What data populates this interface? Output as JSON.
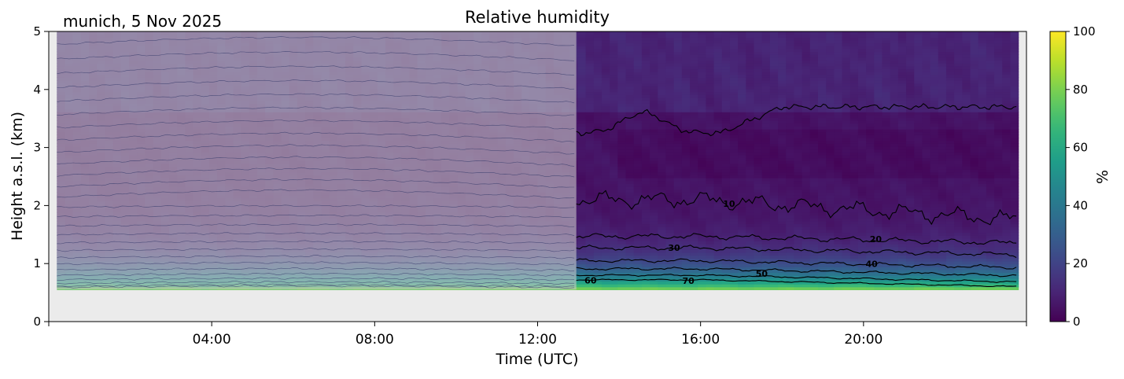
{
  "chart_data": {
    "type": "heatmap",
    "title": "Relative humidity",
    "subtitle": "munich, 5 Nov 2025",
    "xlabel": "Time (UTC)",
    "ylabel": "Height a.s.l. (km)",
    "xlim": [
      0,
      24
    ],
    "ylim": [
      0,
      5
    ],
    "x_ticks": [
      4,
      8,
      12,
      16,
      20
    ],
    "x_tick_labels": [
      "04:00",
      "08:00",
      "12:00",
      "16:00",
      "20:00"
    ],
    "y_ticks": [
      0,
      1,
      2,
      3,
      4,
      5
    ],
    "y_tick_labels": [
      "0",
      "1",
      "2",
      "3",
      "4",
      "5"
    ],
    "data_start_hour": 0.2,
    "data_end_hour": 23.8,
    "observation_start_hour": 12.95,
    "ground_height_km": 0.55,
    "colorbar": {
      "label": "%",
      "min": 0,
      "max": 100,
      "ticks": [
        0,
        20,
        40,
        60,
        80,
        100
      ],
      "tick_labels": [
        "0",
        "20",
        "40",
        "60",
        "80",
        "100"
      ],
      "colormap": "viridis"
    },
    "contour_levels": [
      10,
      20,
      30,
      40,
      50,
      60,
      70
    ],
    "contour_labels": [
      {
        "text": "10",
        "x": 16.7,
        "y": 1.98
      },
      {
        "text": "20",
        "x": 20.3,
        "y": 1.37
      },
      {
        "text": "30",
        "x": 15.35,
        "y": 1.22
      },
      {
        "text": "40",
        "x": 20.2,
        "y": 0.94
      },
      {
        "text": "50",
        "x": 17.5,
        "y": 0.77
      },
      {
        "text": "60",
        "x": 13.3,
        "y": 0.66
      },
      {
        "text": "70",
        "x": 15.7,
        "y": 0.65
      }
    ],
    "grid": false,
    "colors": {
      "ground": "#ebebeb",
      "overlay": "#c8c8c8"
    }
  }
}
